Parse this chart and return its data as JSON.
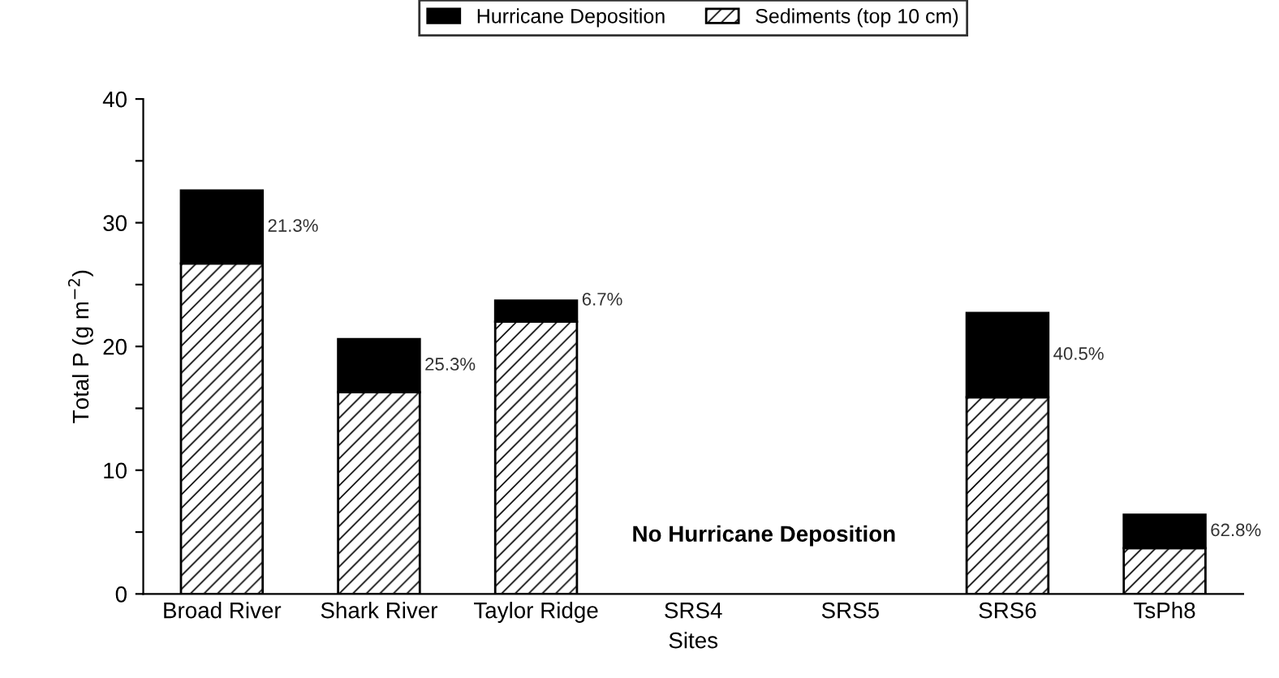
{
  "chart_data": {
    "type": "bar",
    "stacked": true,
    "xlabel": "Sites",
    "ylabel": "Total P (g m$^{−2}$)",
    "categories": [
      "Broad River",
      "Shark River",
      "Taylor Ridge",
      "SRS4",
      "SRS5",
      "SRS6",
      "TsPh8"
    ],
    "series": [
      {
        "name": "Sediments (top 10 cm)",
        "color": "#000000",
        "values": [
          26.7,
          16.3,
          22.0,
          null,
          null,
          15.9,
          3.7
        ]
      },
      {
        "name": "Hurricane Deposition",
        "color": "#000000",
        "values": [
          5.9,
          4.3,
          1.7,
          null,
          null,
          6.8,
          2.7
        ]
      }
    ],
    "ylim": [
      0,
      40
    ],
    "yticks": [
      0,
      {
        "value": 5,
        "label": null
      },
      10,
      {
        "value": 15,
        "label": null
      },
      20,
      {
        "value": 25,
        "label": null
      },
      30,
      {
        "value": 35,
        "label": null
      },
      40
    ],
    "annotations": [
      "21.3%",
      "25.3%",
      "6.7%",
      "40.5%",
      "62.8%",
      "No Hurricane Deposition"
    ],
    "legend": "top",
    "grid": false
  }
}
